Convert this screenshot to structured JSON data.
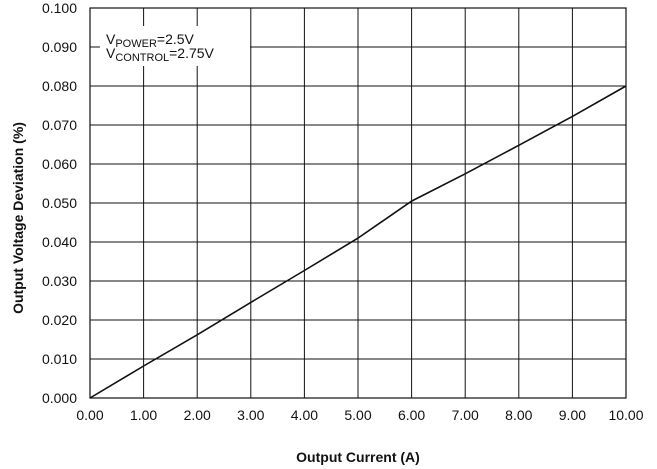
{
  "chart_data": {
    "type": "line",
    "xlabel": "Output Current (A)",
    "ylabel": "Output Voltage Deviation (%)",
    "xlim": [
      0,
      10
    ],
    "ylim": [
      0,
      0.1
    ],
    "grid": true,
    "x_ticks": [
      0,
      1,
      2,
      3,
      4,
      5,
      6,
      7,
      8,
      9,
      10
    ],
    "x_tick_labels": [
      "0.00",
      "1.00",
      "2.00",
      "3.00",
      "4.00",
      "5.00",
      "6.00",
      "7.00",
      "8.00",
      "9.00",
      "10.00"
    ],
    "y_ticks": [
      0,
      0.01,
      0.02,
      0.03,
      0.04,
      0.05,
      0.06,
      0.07,
      0.08,
      0.09,
      0.1
    ],
    "y_tick_labels": [
      "0.000",
      "0.010",
      "0.020",
      "0.030",
      "0.040",
      "0.050",
      "0.060",
      "0.070",
      "0.080",
      "0.090",
      "0.100"
    ],
    "series": [
      {
        "x": [
          0,
          1,
          2,
          3,
          4,
          5,
          6,
          7,
          8,
          9,
          10
        ],
        "y": [
          0,
          0.0082,
          0.0162,
          0.0245,
          0.0327,
          0.041,
          0.0505,
          0.0575,
          0.0648,
          0.0722,
          0.08
        ]
      }
    ],
    "annotations": [
      {
        "main": "V",
        "sub": "POWER",
        "rest": "=2.5V"
      },
      {
        "main": "V",
        "sub": "CONTROL",
        "rest": "=2.75V"
      }
    ]
  },
  "colors": {
    "line": "#111111",
    "grid": "#111111",
    "background": "#ffffff"
  }
}
